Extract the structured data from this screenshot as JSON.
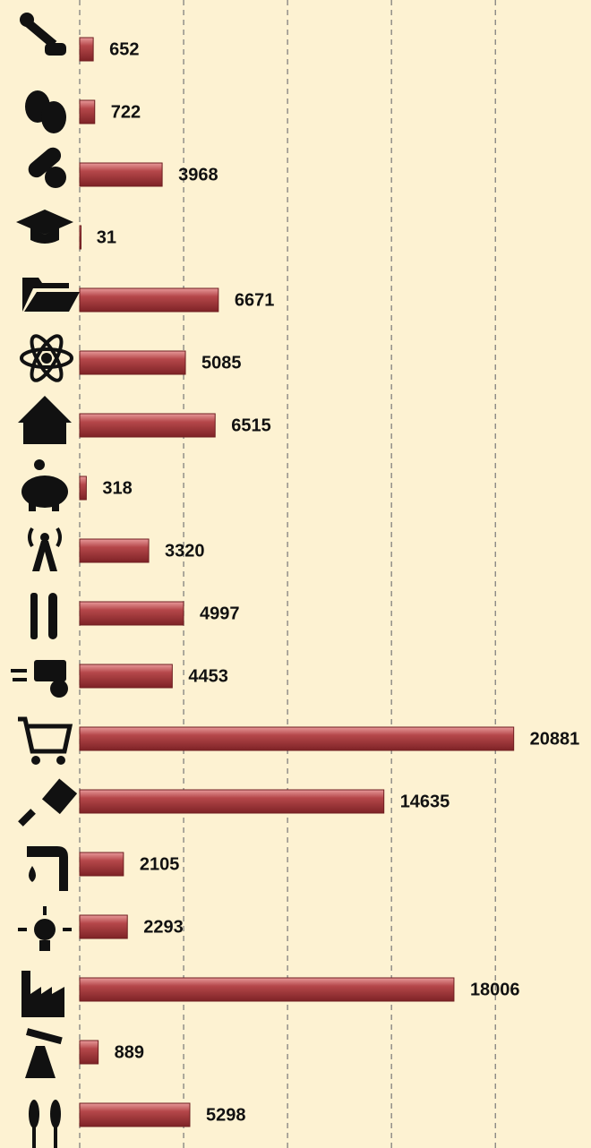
{
  "chart_data": {
    "type": "bar",
    "orientation": "horizontal",
    "categories": [
      null,
      null,
      null,
      null,
      null,
      null,
      null,
      null,
      null,
      null,
      null,
      null,
      null,
      null,
      null,
      null,
      null,
      null
    ],
    "values": [
      652,
      722,
      3968,
      31,
      6671,
      5085,
      6515,
      318,
      3320,
      4997,
      4453,
      20881,
      14635,
      2105,
      2293,
      18006,
      889,
      5298
    ],
    "color": "#b5474a",
    "xlim": [
      0,
      24600
    ],
    "xticks": [
      0,
      5000,
      10000,
      15000,
      20000
    ],
    "grid": true
  }
}
